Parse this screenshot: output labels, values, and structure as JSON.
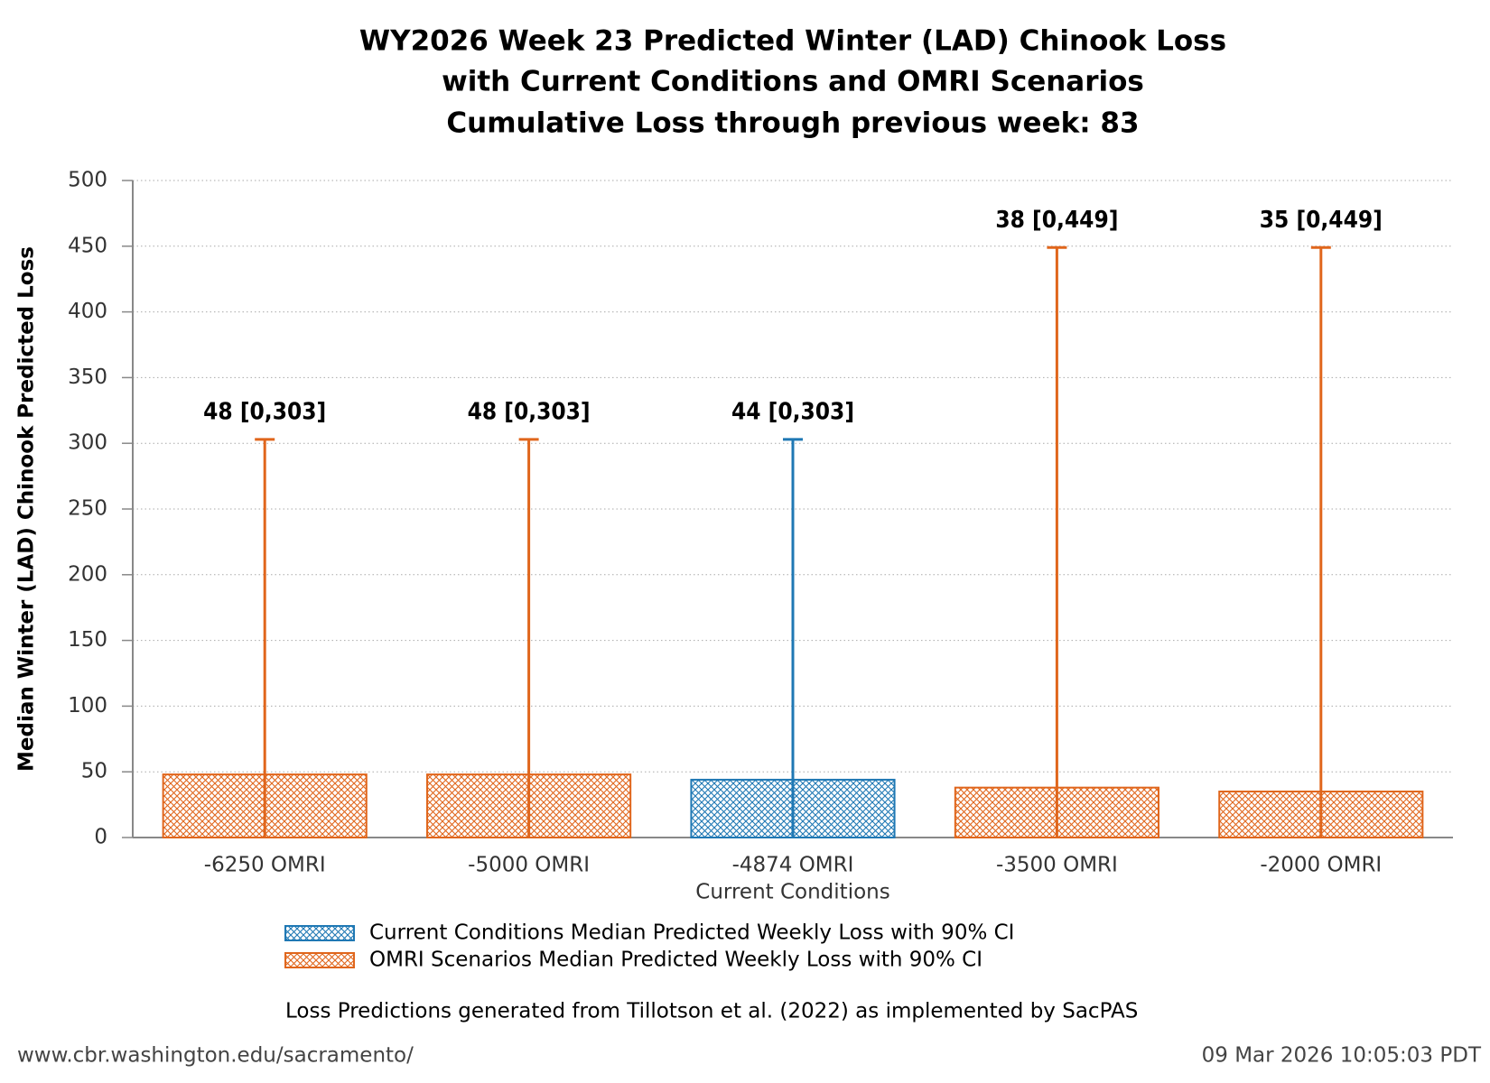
{
  "chart_data": {
    "type": "bar",
    "title": [
      "WY2026 Week 23 Predicted Winter (LAD) Chinook Loss",
      "with Current Conditions and OMRI Scenarios",
      "Cumulative Loss through previous week: 83"
    ],
    "ylabel": "Median Winter (LAD) Chinook Predicted Loss",
    "categories": [
      "-6250 OMRI",
      "-5000 OMRI",
      "-4874 OMRI",
      "-3500 OMRI",
      "-2000 OMRI"
    ],
    "category_notes": [
      null,
      null,
      "Current Conditions",
      null,
      null
    ],
    "series": [
      {
        "name": "Current Conditions Median Predicted Weekly Loss with 90% CI",
        "color": "#1f78b4",
        "values": [
          null,
          null,
          44,
          null,
          null
        ],
        "ci_low": [
          null,
          null,
          0,
          null,
          null
        ],
        "ci_high": [
          null,
          null,
          303,
          null,
          null
        ],
        "value_labels": [
          null,
          null,
          "44 [0,303]",
          null,
          null
        ]
      },
      {
        "name": "OMRI Scenarios Median Predicted Weekly Loss with 90% CI",
        "color": "#e0661c",
        "values": [
          48,
          48,
          null,
          38,
          35
        ],
        "ci_low": [
          0,
          0,
          null,
          0,
          0
        ],
        "ci_high": [
          303,
          303,
          null,
          449,
          449
        ],
        "value_labels": [
          "48 [0,303]",
          "48 [0,303]",
          null,
          "38 [0,449]",
          "35 [0,449]"
        ]
      }
    ],
    "ylim": [
      0,
      500
    ],
    "yticks": [
      0,
      50,
      100,
      150,
      200,
      250,
      300,
      350,
      400,
      450,
      500
    ],
    "grid": true,
    "footnote": "Loss Predictions generated from Tillotson et al. (2022) as implemented by SacPAS",
    "source": "www.cbr.washington.edu/sacramento/",
    "timestamp": "09 Mar 2026 10:05:03 PDT"
  }
}
